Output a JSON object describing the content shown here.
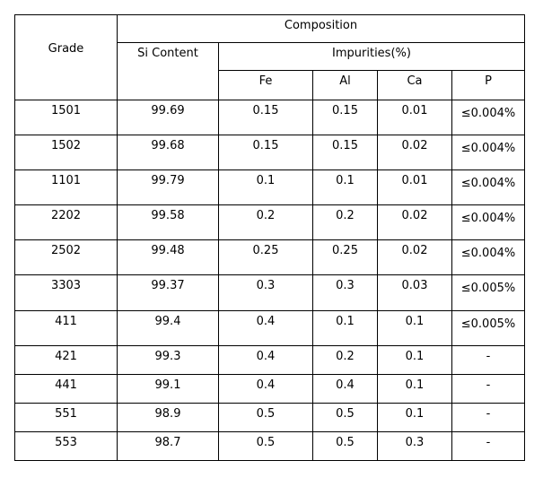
{
  "header": {
    "grade": "Grade",
    "composition": "Composition",
    "si_content": "Si Content",
    "impurities": "Impurities(%)",
    "columns": [
      "Fe",
      "Al",
      "Ca",
      "P"
    ]
  },
  "table": {
    "rows": [
      [
        "1501",
        "99.69",
        "0.15",
        "0.15",
        "0.01",
        "≤0.004%"
      ],
      [
        "1502",
        "99.68",
        "0.15",
        "0.15",
        "0.02",
        "≤0.004%"
      ],
      [
        "1101",
        "99.79",
        "0.1",
        "0.1",
        "0.01",
        "≤0.004%"
      ],
      [
        "2202",
        "99.58",
        "0.2",
        "0.2",
        "0.02",
        "≤0.004%"
      ],
      [
        "2502",
        "99.48",
        "0.25",
        "0.25",
        "0.02",
        "≤0.004%"
      ],
      [
        "3303",
        "99.37",
        "0.3",
        "0.3",
        "0.03",
        "≤0.005%"
      ],
      [
        "411",
        "99.4",
        "0.4",
        "0.1",
        "0.1",
        "≤0.005%"
      ],
      [
        "421",
        "99.3",
        "0.4",
        "0.2",
        "0.1",
        "-"
      ],
      [
        "441",
        "99.1",
        "0.4",
        "0.4",
        "0.1",
        "-"
      ],
      [
        "551",
        "98.9",
        "0.5",
        "0.5",
        "0.1",
        "-"
      ],
      [
        "553",
        "98.7",
        "0.5",
        "0.5",
        "0.3",
        "-"
      ]
    ]
  }
}
